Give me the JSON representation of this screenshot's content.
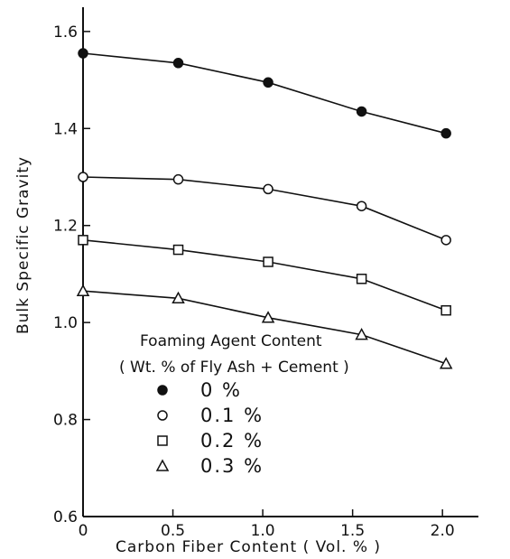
{
  "chart_data": {
    "type": "line",
    "xlabel": "Carbon Fiber Content ( Vol. % )",
    "ylabel": "Bulk Specific Gravity",
    "xlim": [
      0,
      2.2
    ],
    "ylim": [
      0.6,
      1.65
    ],
    "x_ticks": [
      "0",
      "0.5",
      "1.0",
      "1.5",
      "2.0"
    ],
    "y_ticks": [
      "0.6",
      "0.8",
      "1.0",
      "1.2",
      "1.4",
      "1.6"
    ],
    "legend": {
      "title_line1": "Foaming Agent Content",
      "title_line2": "( Wt. % of Fly Ash + Cement )",
      "placement": "lower-left inside"
    },
    "series": [
      {
        "name": "0 %",
        "marker": "filled-circle",
        "x": [
          0,
          0.53,
          1.03,
          1.55,
          2.02
        ],
        "y": [
          1.555,
          1.535,
          1.495,
          1.435,
          1.39
        ]
      },
      {
        "name": "0.1 %",
        "marker": "open-circle",
        "x": [
          0,
          0.53,
          1.03,
          1.55,
          2.02
        ],
        "y": [
          1.3,
          1.295,
          1.275,
          1.24,
          1.17
        ]
      },
      {
        "name": "0.2 %",
        "marker": "open-square",
        "x": [
          0,
          0.53,
          1.03,
          1.55,
          2.02
        ],
        "y": [
          1.17,
          1.15,
          1.125,
          1.09,
          1.025
        ]
      },
      {
        "name": "0.3 %",
        "marker": "open-triangle",
        "x": [
          0,
          0.53,
          1.03,
          1.55,
          2.02
        ],
        "y": [
          1.065,
          1.05,
          1.01,
          0.975,
          0.915
        ]
      }
    ]
  }
}
